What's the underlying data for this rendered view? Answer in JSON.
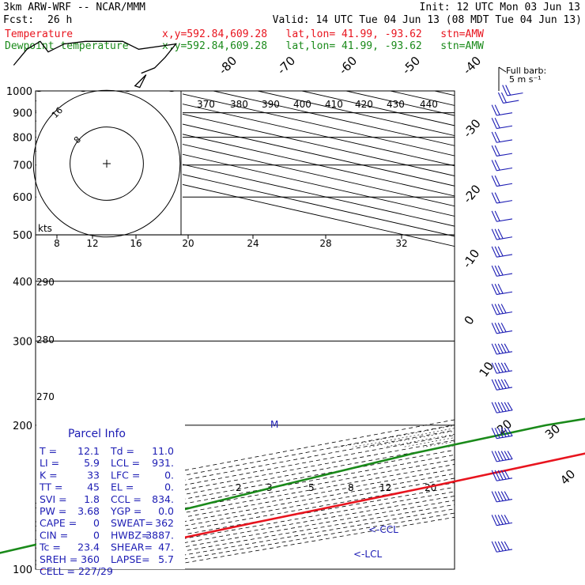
{
  "header": {
    "model": "3km ARW-WRF -- NCAR/MMM",
    "init": "Init: 12 UTC Mon 03 Jun 13",
    "fcst_label": "Fcst:",
    "fcst_value": "26 h",
    "valid": "Valid: 14 UTC Tue 04 Jun 13 (08 MDT Tue 04 Jun 13)",
    "temp_line": {
      "name": "Temperature",
      "loc": "x,y=592.84,609.28   lat,lon= 41.99, -93.62   stn=AMW"
    },
    "dew_line": {
      "name": "Dewpoint temperature",
      "loc": "x,y=592.84,609.28   lat,lon= 41.99, -93.62   stn=AMW"
    }
  },
  "colors": {
    "temperature": "#e8141e",
    "dewpoint": "#1a8a1a",
    "wind": "#1c1cb4",
    "barb_key": "#000000"
  },
  "chart_data": {
    "type": "line",
    "title": "",
    "y_scale": "log-pressure",
    "ylim": [
      1000,
      100
    ],
    "pressure_ticks": [
      100,
      200,
      300,
      400,
      500,
      600,
      700,
      800,
      900,
      1000
    ],
    "isotherm_labels": [
      "-80",
      "-70",
      "-60",
      "-50",
      "-40",
      "-30",
      "-20",
      "-10",
      "0",
      "10",
      "20",
      "30",
      "40"
    ],
    "theta_labels_top": [
      "370",
      "380",
      "390",
      "400",
      "410",
      "420",
      "430",
      "440"
    ],
    "theta_labels_left": [
      "290",
      "280",
      "270"
    ],
    "mixing_ratio_labels": [
      "2",
      "3",
      "5",
      "8",
      "12",
      "20"
    ],
    "series": [
      {
        "name": "Temperature",
        "color": "#e8141e",
        "points": [
          [
            100,
            -59
          ],
          [
            110,
            -59
          ],
          [
            125,
            -57
          ],
          [
            150,
            -53
          ],
          [
            175,
            -51
          ],
          [
            200,
            -52
          ],
          [
            250,
            -43
          ],
          [
            300,
            -35
          ],
          [
            350,
            -26
          ],
          [
            400,
            -17
          ],
          [
            450,
            -9
          ],
          [
            500,
            -6
          ],
          [
            550,
            -2
          ],
          [
            600,
            2
          ],
          [
            650,
            5
          ],
          [
            700,
            6
          ],
          [
            750,
            9
          ],
          [
            800,
            11
          ],
          [
            850,
            13
          ],
          [
            900,
            13.5
          ],
          [
            925,
            13
          ],
          [
            950,
            12
          ]
        ]
      },
      {
        "name": "Dewpoint temperature",
        "color": "#1a8a1a",
        "points": [
          [
            100,
            -84
          ],
          [
            125,
            -85
          ],
          [
            150,
            -88
          ],
          [
            175,
            -90
          ],
          [
            200,
            -88
          ],
          [
            250,
            -70
          ],
          [
            300,
            -54
          ],
          [
            350,
            -44
          ],
          [
            400,
            -33
          ],
          [
            450,
            -23
          ],
          [
            500,
            -20
          ],
          [
            550,
            -13
          ],
          [
            600,
            -1
          ],
          [
            650,
            1
          ],
          [
            700,
            3
          ],
          [
            750,
            6
          ],
          [
            800,
            9
          ],
          [
            850,
            12
          ],
          [
            900,
            12.5
          ],
          [
            925,
            12
          ],
          [
            950,
            11
          ],
          [
            975,
            10
          ]
        ]
      }
    ],
    "annotations": [
      "<-CCL",
      "<-LCL",
      "M"
    ],
    "hodograph": {
      "axis_label": "kts",
      "ring_labels": [
        "8",
        "12",
        "16",
        "20",
        "24",
        "28",
        "32"
      ],
      "circle_labels": [
        "8",
        "16"
      ],
      "path_kts": [
        [
          -35,
          37
        ],
        [
          -30,
          43
        ],
        [
          -25,
          46
        ],
        [
          -22,
          42
        ],
        [
          -16,
          45
        ],
        [
          -8,
          46
        ],
        [
          6,
          46
        ],
        [
          12,
          43
        ],
        [
          26,
          45
        ],
        [
          22,
          40
        ],
        [
          18,
          36
        ],
        [
          13,
          34
        ]
      ],
      "storm_motion_kts": [
        13,
        34
      ]
    },
    "wind_profile": {
      "key_label": "Full barb:",
      "key_value": "5 m s⁻¹",
      "direction_deg": 320,
      "barbs": [
        {
          "p": 110,
          "s": 25
        },
        {
          "p": 125,
          "s": 25
        },
        {
          "p": 140,
          "s": 25
        },
        {
          "p": 155,
          "s": 25
        },
        {
          "p": 170,
          "s": 30
        },
        {
          "p": 190,
          "s": 30
        },
        {
          "p": 215,
          "s": 30
        },
        {
          "p": 240,
          "s": 25
        },
        {
          "p": 260,
          "s": 25
        },
        {
          "p": 285,
          "s": 25
        },
        {
          "p": 315,
          "s": 20
        },
        {
          "p": 345,
          "s": 20
        },
        {
          "p": 380,
          "s": 15
        },
        {
          "p": 415,
          "s": 15
        },
        {
          "p": 455,
          "s": 15
        },
        {
          "p": 495,
          "s": 15
        },
        {
          "p": 540,
          "s": 10
        },
        {
          "p": 590,
          "s": 10
        },
        {
          "p": 640,
          "s": 10
        },
        {
          "p": 690,
          "s": 10
        },
        {
          "p": 740,
          "s": 10
        },
        {
          "p": 790,
          "s": 10
        },
        {
          "p": 845,
          "s": 10
        },
        {
          "p": 900,
          "s": 10
        },
        {
          "p": 955,
          "s": 10
        },
        {
          "p": 990,
          "s": 10
        }
      ]
    }
  },
  "parcel_info": {
    "title": "Parcel Info",
    "rows": [
      [
        "T   =",
        "12.1",
        "Td =",
        "11.0"
      ],
      [
        "LI  =",
        "5.9",
        "LCL =",
        "931."
      ],
      [
        "K   =",
        "33",
        "LFC =",
        "0."
      ],
      [
        "TT  =",
        "45",
        "EL  =",
        "0."
      ],
      [
        "SVI =",
        "1.8",
        "CCL =",
        "834."
      ],
      [
        "PW  =",
        "3.68",
        "YGP =",
        "0.0"
      ],
      [
        "CAPE =",
        "0",
        "SWEAT=",
        "362"
      ],
      [
        "CIN  =",
        "0",
        "HWBZ=",
        "3887."
      ],
      [
        "Tc  =",
        "23.4",
        "SHEAR=",
        "47."
      ],
      [
        "SREH =",
        "360",
        "LAPSE=",
        "5.7"
      ],
      [
        "CELL = 227/29",
        "",
        "",
        ""
      ]
    ]
  }
}
